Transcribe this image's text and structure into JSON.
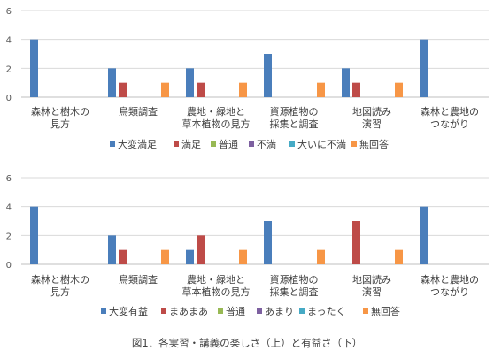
{
  "caption": "図1．各実習・講義の楽しさ（上）と有益さ（下）",
  "chart_data": [
    {
      "type": "bar",
      "title": "",
      "xlabel": "",
      "ylabel": "",
      "ylim": [
        0,
        6
      ],
      "yticks": [
        0,
        2,
        4,
        6
      ],
      "grid": true,
      "legend_position": "bottom",
      "categories": [
        [
          "森林と樹木の",
          "見方"
        ],
        [
          "鳥類調査"
        ],
        [
          "農地・緑地と",
          "草本植物の見方"
        ],
        [
          "資源植物の",
          "採集と調査"
        ],
        [
          "地図読み",
          "演習"
        ],
        [
          "森林と農地の",
          "つながり"
        ]
      ],
      "series": [
        {
          "name": "大変満足",
          "color": "#4a7ebb",
          "values": [
            4,
            2,
            2,
            3,
            2,
            4
          ]
        },
        {
          "name": "満足",
          "color": "#be4b48",
          "values": [
            0,
            1,
            1,
            0,
            1,
            0
          ]
        },
        {
          "name": "普通",
          "color": "#98b954",
          "values": [
            0,
            0,
            0,
            0,
            0,
            0
          ]
        },
        {
          "name": "不満",
          "color": "#7d60a0",
          "values": [
            0,
            0,
            0,
            0,
            0,
            0
          ]
        },
        {
          "name": "大いに不満",
          "color": "#46aac5",
          "values": [
            0,
            0,
            0,
            0,
            0,
            0
          ]
        },
        {
          "name": "無回答",
          "color": "#f79646",
          "values": [
            0,
            1,
            1,
            1,
            1,
            0
          ]
        }
      ]
    },
    {
      "type": "bar",
      "title": "",
      "xlabel": "",
      "ylabel": "",
      "ylim": [
        0,
        6
      ],
      "yticks": [
        0,
        2,
        4,
        6
      ],
      "grid": true,
      "legend_position": "bottom",
      "categories": [
        [
          "森林と樹木の",
          "見方"
        ],
        [
          "鳥類調査"
        ],
        [
          "農地・緑地と",
          "草本植物の見方"
        ],
        [
          "資源植物の",
          "採集と調査"
        ],
        [
          "地図読み",
          "演習"
        ],
        [
          "森林と農地の",
          "つながり"
        ]
      ],
      "series": [
        {
          "name": "大変有益",
          "color": "#4a7ebb",
          "values": [
            4,
            2,
            1,
            3,
            0,
            4
          ]
        },
        {
          "name": "まあまあ",
          "color": "#be4b48",
          "values": [
            0,
            1,
            2,
            0,
            3,
            0
          ]
        },
        {
          "name": "普通",
          "color": "#98b954",
          "values": [
            0,
            0,
            0,
            0,
            0,
            0
          ]
        },
        {
          "name": "あまり",
          "color": "#7d60a0",
          "values": [
            0,
            0,
            0,
            0,
            0,
            0
          ]
        },
        {
          "name": "まったく",
          "color": "#46aac5",
          "values": [
            0,
            0,
            0,
            0,
            0,
            0
          ]
        },
        {
          "name": "無回答",
          "color": "#f79646",
          "values": [
            0,
            1,
            1,
            1,
            1,
            0
          ]
        }
      ]
    }
  ]
}
